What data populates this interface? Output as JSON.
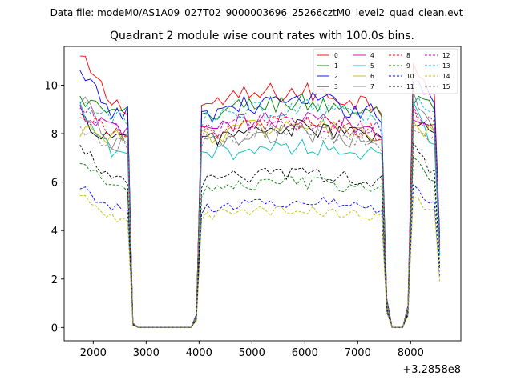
{
  "figure": {
    "suptitle": "Data file: modeM0/AS1A09_027T02_9000003696_25266cztM0_level2_quad_clean.evt",
    "title": "Quadrant 2 module wise count rates with 100.0s bins.",
    "x_offset_label": "+3.2858e8"
  },
  "chart_data": {
    "type": "line",
    "title": "Quadrant 2 module wise count rates with 100.0s bins.",
    "xlabel": "",
    "ylabel": "",
    "xlim": [
      1450,
      8950
    ],
    "ylim": [
      -0.55,
      11.6
    ],
    "xticks": [
      2000,
      3000,
      4000,
      5000,
      6000,
      7000,
      8000
    ],
    "yticks": [
      0,
      2,
      4,
      6,
      8,
      10
    ],
    "x_offset": 328580000,
    "grid": false,
    "legend_position": "top-right",
    "legend_columns": 4,
    "series": [
      {
        "name": "0",
        "color": "#ff0000",
        "dash": "solid",
        "base": 9.15,
        "start": 11.1
      },
      {
        "name": "1",
        "color": "#008000",
        "dash": "solid",
        "base": 8.75,
        "start": 9.4
      },
      {
        "name": "2",
        "color": "#0000ff",
        "dash": "solid",
        "base": 8.8,
        "start": 10.4
      },
      {
        "name": "3",
        "color": "#000000",
        "dash": "solid",
        "base": 7.75,
        "start": 8.6
      },
      {
        "name": "4",
        "color": "#bf00bf",
        "dash": "solid",
        "base": 8.1,
        "start": 8.9
      },
      {
        "name": "5",
        "color": "#00bfbf",
        "dash": "solid",
        "base": 7.05,
        "start": 9.0
      },
      {
        "name": "6",
        "color": "#bfbf00",
        "dash": "solid",
        "base": 7.85,
        "start": 8.2
      },
      {
        "name": "7",
        "color": "#808080",
        "dash": "solid",
        "base": 7.55,
        "start": 9.5
      },
      {
        "name": "8",
        "color": "#ff0000",
        "dash": "dashed",
        "base": 7.95,
        "start": 8.9
      },
      {
        "name": "9",
        "color": "#008000",
        "dash": "dashed",
        "base": 5.65,
        "start": 6.9
      },
      {
        "name": "10",
        "color": "#0000ff",
        "dash": "dashed",
        "base": 4.9,
        "start": 5.8
      },
      {
        "name": "11",
        "color": "#000000",
        "dash": "dashed",
        "base": 6.0,
        "start": 7.6
      },
      {
        "name": "12",
        "color": "#bf00bf",
        "dash": "dashed",
        "base": 8.05,
        "start": 9.1
      },
      {
        "name": "13",
        "color": "#00bfbf",
        "dash": "dashed",
        "base": 8.5,
        "start": 9.3
      },
      {
        "name": "14",
        "color": "#bfbf00",
        "dash": "dashed",
        "base": 4.55,
        "start": 5.4
      },
      {
        "name": "15",
        "color": "#808080",
        "dash": "dashed",
        "base": 7.6,
        "start": 8.2
      }
    ],
    "segments": [
      {
        "name": "on-orbit-1",
        "start": 1750,
        "end": 2650
      },
      {
        "name": "saa-gap",
        "start": 2900,
        "end": 3850,
        "value": 0
      },
      {
        "name": "on-orbit-2",
        "start": 4050,
        "end": 7450
      },
      {
        "name": "saa-gap-2",
        "start": 7650,
        "end": 7950,
        "value": 0
      },
      {
        "name": "on-orbit-3",
        "start": 8050,
        "end": 8550
      }
    ]
  }
}
